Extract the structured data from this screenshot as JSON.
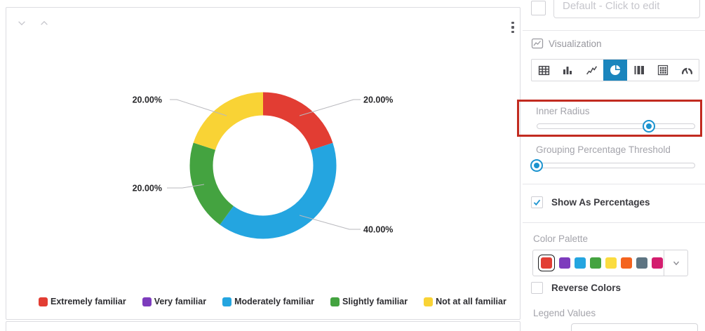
{
  "chart_data": {
    "type": "pie",
    "donut": true,
    "inner_radius_ratio": 0.7,
    "show_as_percentages": true,
    "legend_position": "bottom",
    "slices": [
      {
        "label": "Extremely familiar",
        "value_pct": 20.0,
        "display": "20.00%",
        "color": "#e23d33"
      },
      {
        "label": "Moderately familiar",
        "value_pct": 40.0,
        "display": "40.00%",
        "color": "#24a5e0"
      },
      {
        "label": "Slightly familiar",
        "value_pct": 20.0,
        "display": "20.00%",
        "color": "#44a340"
      },
      {
        "label": "Not at all familiar",
        "value_pct": 20.0,
        "display": "20.00%",
        "color": "#f9d335"
      }
    ],
    "legend": [
      {
        "label": "Extremely familiar",
        "color": "#e23d33"
      },
      {
        "label": "Very familiar",
        "color": "#7d3cbd"
      },
      {
        "label": "Moderately familiar",
        "color": "#24a5e0"
      },
      {
        "label": "Slightly familiar",
        "color": "#44a340"
      },
      {
        "label": "Not at all familiar",
        "color": "#f9d335"
      }
    ]
  },
  "sidebar": {
    "title_field": {
      "placeholder": "Default - Click to edit",
      "value": "",
      "checkbox_checked": false
    },
    "visualization": {
      "label": "Visualization",
      "options": [
        "table",
        "bar-chart",
        "line-chart",
        "pie-chart",
        "columns",
        "pivot-table",
        "gauge"
      ],
      "selected": "pie-chart",
      "selected_color": "#1a85bd"
    },
    "inner_radius": {
      "label": "Inner Radius",
      "value_percent": 71,
      "annotated": true
    },
    "grouping_threshold": {
      "label": "Grouping Percentage Threshold",
      "value_percent": 0
    },
    "show_as_percentages": {
      "label": "Show As Percentages",
      "checked": true
    },
    "color_palette": {
      "label": "Color Palette",
      "colors": [
        "#e23d33",
        "#7d3cbd",
        "#24a5e0",
        "#44a340",
        "#fbdc3f",
        "#f4631e",
        "#5d7482",
        "#d31d6e"
      ],
      "selected_index": 0
    },
    "reverse_colors": {
      "label": "Reverse Colors",
      "checked": false
    },
    "legend_values": {
      "label": "Legend Values"
    },
    "annotation_color": "#c22b20",
    "accent_blue": "#1b93cf"
  }
}
